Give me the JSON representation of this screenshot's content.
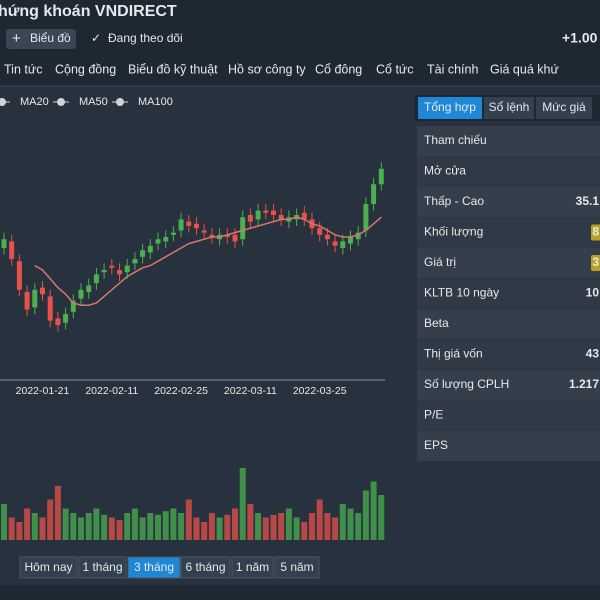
{
  "header": {
    "title": "hứng khoán VNDIRECT",
    "buttons": [
      "Biểu đồ",
      "Đang theo dõi"
    ],
    "change": "+1.00"
  },
  "nav": [
    "Tin tức",
    "Cộng đồng",
    "Biểu đồ kỹ thuật",
    "Hồ sơ công ty",
    "Cổ đông",
    "Cổ tức",
    "Tài chính",
    "Giá quá khứ"
  ],
  "chart_data": {
    "type": "candlestick",
    "legend": [
      "MA20",
      "MA50",
      "MA100"
    ],
    "categories": [
      null,
      null,
      null,
      null,
      null,
      "2022-01-21",
      null,
      null,
      null,
      null,
      null,
      null,
      null,
      null,
      "2022-02-11",
      null,
      null,
      null,
      null,
      null,
      null,
      null,
      null,
      "2022-02-25",
      null,
      null,
      null,
      null,
      null,
      null,
      null,
      null,
      "2022-03-11",
      null,
      null,
      null,
      null,
      null,
      null,
      null,
      null,
      "2022-03-25",
      null,
      null,
      null,
      null,
      null,
      null,
      null,
      null
    ],
    "open": [
      35.0,
      35.3,
      34.4,
      33.0,
      32.3,
      33.2,
      32.8,
      31.8,
      31.6,
      32.1,
      32.7,
      33.0,
      33.4,
      33.9,
      34.2,
      34.0,
      33.9,
      34.3,
      34.6,
      34.8,
      35.2,
      35.3,
      35.6,
      35.8,
      36.2,
      36.1,
      35.8,
      35.6,
      35.4,
      35.6,
      35.6,
      35.4,
      36.5,
      36.3,
      36.7,
      36.7,
      36.5,
      36.2,
      36.3,
      36.6,
      36.3,
      35.9,
      35.6,
      35.3,
      35.0,
      35.2,
      35.4,
      35.8,
      37.0,
      37.9
    ],
    "high": [
      35.7,
      35.6,
      34.7,
      33.3,
      33.4,
      33.5,
      33.1,
      32.1,
      32.3,
      32.9,
      33.4,
      33.6,
      34.1,
      34.3,
      34.5,
      34.3,
      34.5,
      34.8,
      35.2,
      35.4,
      35.7,
      35.8,
      36.0,
      36.6,
      36.5,
      36.4,
      36.1,
      35.9,
      35.9,
      35.9,
      35.9,
      36.7,
      36.8,
      37.0,
      37.0,
      37.0,
      36.8,
      36.7,
      36.8,
      36.9,
      36.6,
      36.2,
      35.9,
      35.6,
      35.6,
      35.8,
      36.0,
      37.3,
      38.2,
      38.9
    ],
    "low": [
      34.7,
      34.2,
      32.8,
      31.9,
      32.0,
      32.6,
      31.4,
      31.2,
      31.3,
      31.8,
      32.4,
      32.7,
      33.1,
      33.6,
      33.8,
      33.5,
      33.6,
      34.0,
      34.3,
      34.5,
      34.9,
      35.0,
      35.3,
      35.5,
      35.7,
      35.6,
      35.4,
      35.2,
      35.1,
      35.2,
      35.0,
      35.1,
      35.9,
      36.0,
      36.3,
      36.2,
      36.0,
      35.9,
      36.0,
      36.0,
      35.6,
      35.3,
      35.1,
      34.8,
      34.7,
      34.9,
      35.1,
      35.5,
      36.7,
      37.6
    ],
    "close": [
      35.4,
      34.5,
      33.1,
      32.2,
      33.1,
      32.9,
      31.7,
      31.5,
      32.0,
      32.6,
      33.1,
      33.3,
      33.8,
      34.0,
      34.1,
      33.8,
      34.2,
      34.5,
      34.9,
      35.1,
      35.4,
      35.5,
      35.7,
      36.3,
      36.0,
      35.9,
      35.7,
      35.5,
      35.6,
      35.5,
      35.3,
      36.4,
      36.2,
      36.7,
      36.6,
      36.5,
      36.3,
      36.4,
      36.5,
      36.3,
      35.9,
      35.6,
      35.4,
      35.1,
      35.3,
      35.5,
      35.7,
      37.0,
      37.9,
      38.6
    ],
    "ma20": [
      null,
      null,
      null,
      null,
      34.2,
      34.0,
      33.6,
      33.2,
      32.9,
      32.5,
      32.4,
      32.4,
      32.5,
      32.8,
      33.1,
      33.4,
      33.7,
      33.9,
      34.1,
      34.2,
      34.4,
      34.6,
      34.8,
      35.0,
      35.2,
      35.3,
      35.4,
      35.5,
      35.5,
      35.6,
      35.7,
      35.8,
      35.9,
      36.0,
      36.1,
      36.2,
      36.3,
      36.3,
      36.4,
      36.3,
      36.1,
      36.0,
      35.8,
      35.6,
      35.5,
      35.5,
      35.6,
      35.8,
      36.1,
      36.4
    ],
    "volume": [
      40,
      25,
      20,
      35,
      30,
      25,
      45,
      60,
      35,
      30,
      25,
      30,
      35,
      28,
      25,
      22,
      30,
      35,
      25,
      30,
      28,
      32,
      35,
      30,
      45,
      25,
      20,
      30,
      25,
      28,
      35,
      80,
      40,
      30,
      25,
      28,
      30,
      35,
      25,
      20,
      30,
      45,
      30,
      25,
      40,
      35,
      30,
      55,
      65,
      50
    ],
    "up_color": "#4caf50",
    "down_color": "#e8504a",
    "ma_color": "#d9776c"
  },
  "ranges": {
    "buttons": [
      "Hôm nay",
      "1 tháng",
      "3 tháng",
      "6 tháng",
      "1 năm",
      "5 năm"
    ],
    "active": 2
  },
  "panel": {
    "tabs": [
      "Tổng hợp",
      "Sổ lệnh",
      "Mức giá"
    ],
    "active": 0,
    "rows": [
      {
        "label": "Tham chiếu"
      },
      {
        "label": "Mở cửa"
      },
      {
        "label": "Thấp - Cao",
        "value": "35.1",
        "color": "#e8504a"
      },
      {
        "label": "Khối lượng",
        "value": "8",
        "highlight": true
      },
      {
        "label": "Giá trị",
        "value": "3",
        "highlight": true
      },
      {
        "label": "KLTB 10 ngày",
        "value": "10"
      },
      {
        "label": "Beta"
      },
      {
        "label": "Thị giá vốn",
        "value": "43"
      },
      {
        "label": "Số lượng CPLH",
        "value": "1.217"
      },
      {
        "label": "P/E"
      },
      {
        "label": "EPS"
      }
    ]
  }
}
